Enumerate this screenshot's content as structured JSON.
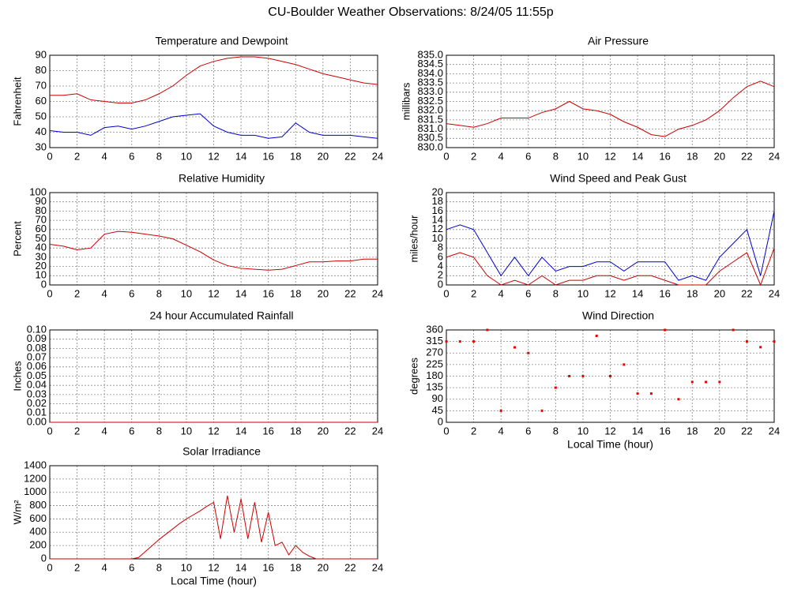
{
  "title": "CU-Boulder Weather Observations: 8/24/05 11:55p",
  "chart_data": [
    {
      "type": "line",
      "title": "Temperature and Dewpoint",
      "ylabel": "Fahrenheit",
      "x": [
        0,
        1,
        2,
        3,
        4,
        5,
        6,
        7,
        8,
        9,
        10,
        11,
        12,
        13,
        14,
        15,
        16,
        17,
        18,
        19,
        20,
        21,
        22,
        23,
        24
      ],
      "series": [
        {
          "color": "#cc0000",
          "values": [
            64,
            64,
            65,
            61,
            60,
            59,
            59,
            61,
            65,
            70,
            77,
            83,
            86,
            88,
            89,
            89,
            88,
            86,
            84,
            81,
            78,
            76,
            74,
            72,
            71
          ]
        },
        {
          "color": "#0000cc",
          "values": [
            41,
            40,
            40,
            38,
            43,
            44,
            42,
            44,
            47,
            50,
            51,
            52,
            44,
            40,
            38,
            38,
            36,
            37,
            46,
            40,
            38,
            38,
            38,
            37,
            36
          ]
        }
      ],
      "xlim": [
        0,
        24
      ],
      "xticks": [
        0,
        2,
        4,
        6,
        8,
        10,
        12,
        14,
        16,
        18,
        20,
        22,
        24
      ],
      "ylim": [
        30,
        90
      ],
      "yticks": [
        30,
        40,
        50,
        60,
        70,
        80,
        90
      ],
      "grid": true
    },
    {
      "type": "line",
      "title": "Air Pressure",
      "ylabel": "millibars",
      "x": [
        0,
        1,
        2,
        3,
        4,
        5,
        6,
        7,
        8,
        9,
        10,
        11,
        12,
        13,
        14,
        15,
        16,
        17,
        18,
        19,
        20,
        21,
        22,
        23,
        24
      ],
      "series": [
        {
          "color": "#cc0000",
          "values": [
            831.3,
            831.2,
            831.1,
            831.3,
            831.6,
            831.6,
            831.6,
            831.9,
            832.1,
            832.5,
            832.1,
            832.0,
            831.8,
            831.4,
            831.1,
            830.7,
            830.6,
            831.0,
            831.2,
            831.5,
            832.0,
            832.7,
            833.3,
            833.6,
            833.3
          ]
        }
      ],
      "xlim": [
        0,
        24
      ],
      "xticks": [
        0,
        2,
        4,
        6,
        8,
        10,
        12,
        14,
        16,
        18,
        20,
        22,
        24
      ],
      "ylim": [
        830,
        835
      ],
      "yticks": [
        {
          "value": 830,
          "label": "830.0"
        },
        830.5,
        {
          "value": 831,
          "label": "831.0"
        },
        831.5,
        {
          "value": 832,
          "label": "832.0"
        },
        832.5,
        {
          "value": 833,
          "label": "833.0"
        },
        833.5,
        {
          "value": 834,
          "label": "834.0"
        },
        834.5,
        {
          "value": 835,
          "label": "835.0"
        }
      ],
      "grid": true
    },
    {
      "type": "line",
      "title": "Relative Humidity",
      "ylabel": "Percent",
      "x": [
        0,
        1,
        2,
        3,
        4,
        5,
        6,
        7,
        8,
        9,
        10,
        11,
        12,
        13,
        14,
        15,
        16,
        17,
        18,
        19,
        20,
        21,
        22,
        23,
        24
      ],
      "series": [
        {
          "color": "#cc0000",
          "values": [
            44,
            42,
            38,
            40,
            55,
            58,
            57,
            55,
            53,
            50,
            43,
            36,
            27,
            21,
            18,
            17,
            16,
            17,
            21,
            25,
            25,
            26,
            26,
            28,
            28
          ]
        }
      ],
      "xlim": [
        0,
        24
      ],
      "xticks": [
        0,
        2,
        4,
        6,
        8,
        10,
        12,
        14,
        16,
        18,
        20,
        22,
        24
      ],
      "ylim": [
        0,
        100
      ],
      "yticks": [
        0,
        10,
        20,
        30,
        40,
        50,
        60,
        70,
        80,
        90,
        100
      ],
      "grid": true
    },
    {
      "type": "line",
      "title": "Wind Speed and Peak Gust",
      "ylabel": "miles/hour",
      "x": [
        0,
        1,
        2,
        3,
        4,
        5,
        6,
        7,
        8,
        9,
        10,
        11,
        12,
        13,
        14,
        15,
        16,
        17,
        18,
        19,
        20,
        21,
        22,
        23,
        24
      ],
      "series": [
        {
          "color": "#0000cc",
          "values": [
            12,
            13,
            12,
            7,
            2,
            6,
            2,
            6,
            3,
            4,
            4,
            5,
            5,
            3,
            5,
            5,
            5,
            1,
            2,
            1,
            6,
            9,
            12,
            2,
            16
          ]
        },
        {
          "color": "#cc0000",
          "values": [
            6,
            7,
            6,
            2,
            0,
            1,
            0,
            2,
            0,
            1,
            1,
            2,
            2,
            1,
            2,
            2,
            1,
            0,
            0,
            0,
            3,
            5,
            7,
            0,
            8
          ]
        }
      ],
      "xlim": [
        0,
        24
      ],
      "xticks": [
        0,
        2,
        4,
        6,
        8,
        10,
        12,
        14,
        16,
        18,
        20,
        22,
        24
      ],
      "ylim": [
        0,
        20
      ],
      "yticks": [
        0,
        2,
        4,
        6,
        8,
        10,
        12,
        14,
        16,
        18,
        20
      ],
      "grid": true
    },
    {
      "type": "line",
      "title": "24 hour Accumulated Rainfall",
      "ylabel": "Inches",
      "x": [
        0,
        1,
        2,
        3,
        4,
        5,
        6,
        7,
        8,
        9,
        10,
        11,
        12,
        13,
        14,
        15,
        16,
        17,
        18,
        19,
        20,
        21,
        22,
        23,
        24
      ],
      "series": [
        {
          "color": "#cc0000",
          "values": [
            0,
            0,
            0,
            0,
            0,
            0,
            0,
            0,
            0,
            0,
            0,
            0,
            0,
            0,
            0,
            0,
            0,
            0,
            0,
            0,
            0,
            0,
            0,
            0,
            0
          ]
        }
      ],
      "xlim": [
        0,
        24
      ],
      "xticks": [
        0,
        2,
        4,
        6,
        8,
        10,
        12,
        14,
        16,
        18,
        20,
        22,
        24
      ],
      "ylim": [
        0,
        0.1
      ],
      "yticks": [
        {
          "value": 0,
          "label": "0.00"
        },
        0.01,
        0.02,
        0.03,
        0.04,
        0.05,
        0.06,
        0.07,
        0.08,
        0.09,
        {
          "value": 0.1,
          "label": "0.10"
        }
      ],
      "grid": true
    },
    {
      "type": "scatter",
      "title": "Wind Direction",
      "ylabel": "degrees",
      "xlabel": "Local Time (hour)",
      "x": [
        0,
        1,
        2,
        3,
        4,
        5,
        6,
        7,
        8,
        9,
        10,
        11,
        12,
        13,
        14,
        15,
        16,
        17,
        18,
        19,
        20,
        21,
        22,
        23,
        24
      ],
      "series": [
        {
          "color": "#ee0000",
          "values": [
            315,
            315,
            315,
            360,
            45,
            292,
            270,
            45,
            135,
            180,
            180,
            337,
            180,
            225,
            112,
            112,
            360,
            90,
            157,
            157,
            157,
            360,
            315,
            293,
            315
          ]
        }
      ],
      "xlim": [
        0,
        24
      ],
      "xticks": [
        0,
        2,
        4,
        6,
        8,
        10,
        12,
        14,
        16,
        18,
        20,
        22,
        24
      ],
      "ylim": [
        0,
        360
      ],
      "yticks": [
        0,
        45,
        90,
        135,
        180,
        225,
        270,
        315,
        360
      ],
      "grid": true
    },
    {
      "type": "line",
      "title": "Solar Irradiance",
      "ylabel": "W/m²",
      "xlabel": "Local Time (hour)",
      "x": [
        0,
        0.5,
        1,
        1.5,
        2,
        2.5,
        3,
        3.5,
        4,
        4.5,
        5,
        5.5,
        6,
        6.5,
        7,
        7.5,
        8,
        8.5,
        9,
        9.5,
        10,
        10.5,
        11,
        11.5,
        12,
        12.5,
        13,
        13.5,
        14,
        14.5,
        15,
        15.5,
        16,
        16.5,
        17,
        17.5,
        18,
        18.5,
        19,
        19.5,
        20,
        20.5,
        21,
        21.5,
        22,
        22.5,
        23,
        23.5,
        24
      ],
      "series": [
        {
          "color": "#cc0000",
          "values": [
            0,
            0,
            0,
            0,
            0,
            0,
            0,
            0,
            0,
            0,
            0,
            0,
            0,
            20,
            110,
            200,
            290,
            370,
            450,
            530,
            600,
            660,
            720,
            790,
            850,
            300,
            950,
            400,
            900,
            300,
            850,
            250,
            700,
            200,
            250,
            60,
            200,
            100,
            40,
            0,
            0,
            0,
            0,
            0,
            0,
            0,
            0,
            0,
            0
          ]
        }
      ],
      "xlim": [
        0,
        24
      ],
      "xticks": [
        0,
        2,
        4,
        6,
        8,
        10,
        12,
        14,
        16,
        18,
        20,
        22,
        24
      ],
      "ylim": [
        0,
        1400
      ],
      "yticks": [
        0,
        200,
        400,
        600,
        800,
        1000,
        1200,
        1400
      ],
      "grid": true
    }
  ]
}
